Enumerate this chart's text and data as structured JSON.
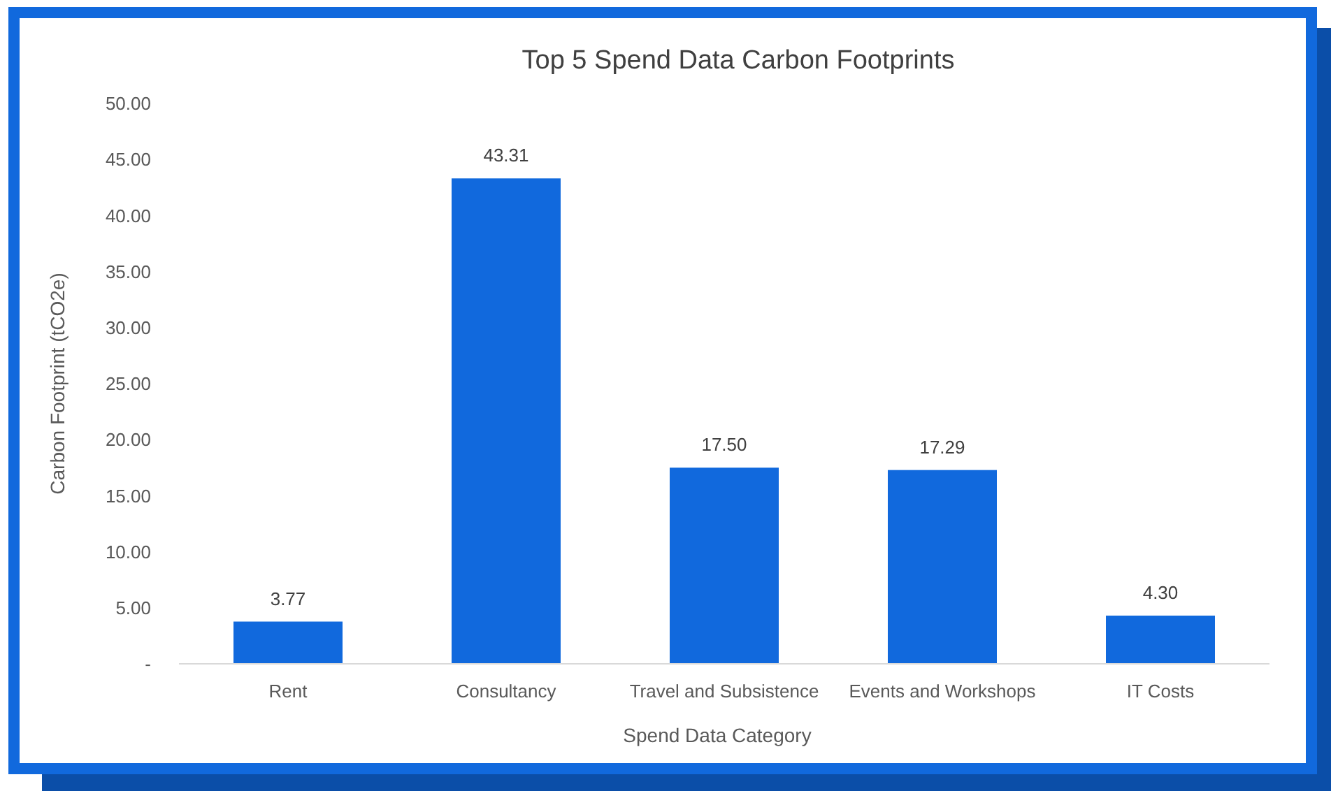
{
  "chart_data": {
    "type": "bar",
    "title": "Top 5 Spend Data Carbon Footprints",
    "xlabel": "Spend Data Category",
    "ylabel": "Carbon Footprint (tCO2e)",
    "categories": [
      "Rent",
      "Consultancy",
      "Travel and Subsistence",
      "Events and Workshops",
      "IT Costs"
    ],
    "values": [
      3.77,
      43.31,
      17.5,
      17.29,
      4.3
    ],
    "color": "#1169dd",
    "value_labels": [
      "3.77",
      "43.31",
      "17.50",
      "17.29",
      "4.30"
    ],
    "ylim": [
      0,
      50
    ],
    "yticks": [
      {
        "value": 0,
        "label": "-"
      },
      {
        "value": 5,
        "label": "5.00"
      },
      {
        "value": 10,
        "label": "10.00"
      },
      {
        "value": 15,
        "label": "15.00"
      },
      {
        "value": 20,
        "label": "20.00"
      },
      {
        "value": 25,
        "label": "25.00"
      },
      {
        "value": 30,
        "label": "30.00"
      },
      {
        "value": 35,
        "label": "35.00"
      },
      {
        "value": 40,
        "label": "40.00"
      },
      {
        "value": 45,
        "label": "45.00"
      },
      {
        "value": 50,
        "label": "50.00"
      }
    ],
    "grid": false
  }
}
